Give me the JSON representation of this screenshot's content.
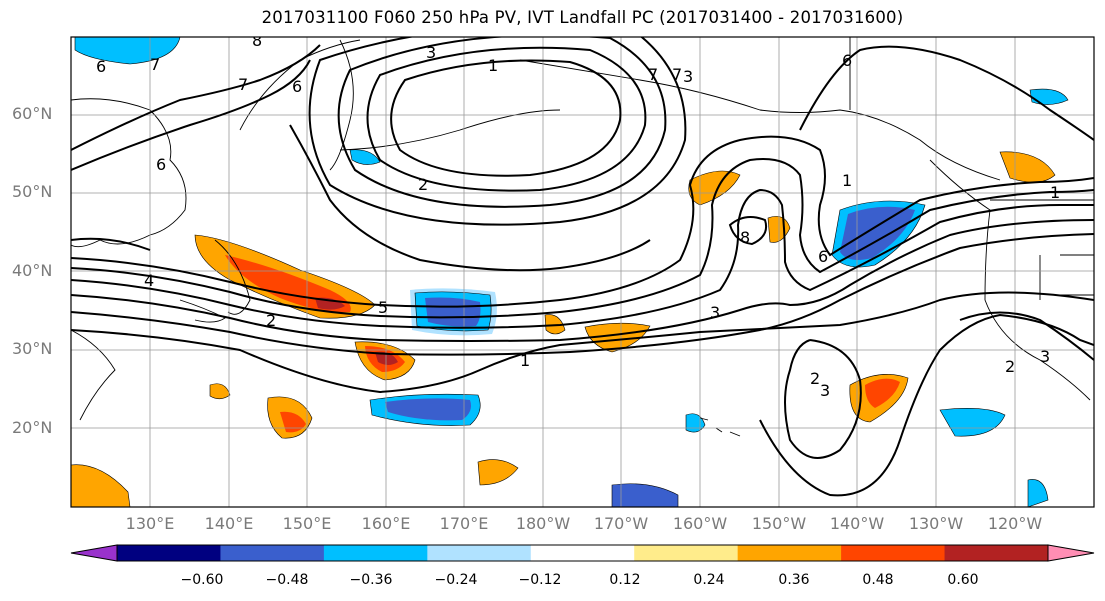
{
  "title": "2017031100 F060 250 hPa PV, IVT Landfall PC (2017031400 - 2017031600)",
  "map": {
    "lat_labels": [
      "60°N",
      "50°N",
      "40°N",
      "30°N",
      "20°N"
    ],
    "lon_labels": [
      "130°E",
      "140°E",
      "150°E",
      "160°E",
      "170°E",
      "180°W",
      "170°W",
      "160°W",
      "150°W",
      "140°W",
      "130°W",
      "120°W"
    ],
    "contour_labels": [
      "8",
      "6",
      "7",
      "7",
      "6",
      "3",
      "1",
      "7",
      "7",
      "3",
      "6",
      "2",
      "6",
      "4",
      "2",
      "5",
      "3",
      "1",
      "6",
      "8",
      "1",
      "1",
      "2",
      "3",
      "2",
      "3"
    ]
  },
  "colorbar": {
    "tick_labels": [
      "−0.60",
      "−0.48",
      "−0.36",
      "−0.24",
      "−0.12",
      "0.12",
      "0.24",
      "0.36",
      "0.48",
      "0.60"
    ],
    "colors": [
      "#9932cc",
      "#000080",
      "#3a5fcd",
      "#00bfff",
      "#b0e2ff",
      "#ffffff",
      "#ffec8b",
      "#ffa500",
      "#ff4500",
      "#b22222",
      "#ff8eb4"
    ]
  }
}
